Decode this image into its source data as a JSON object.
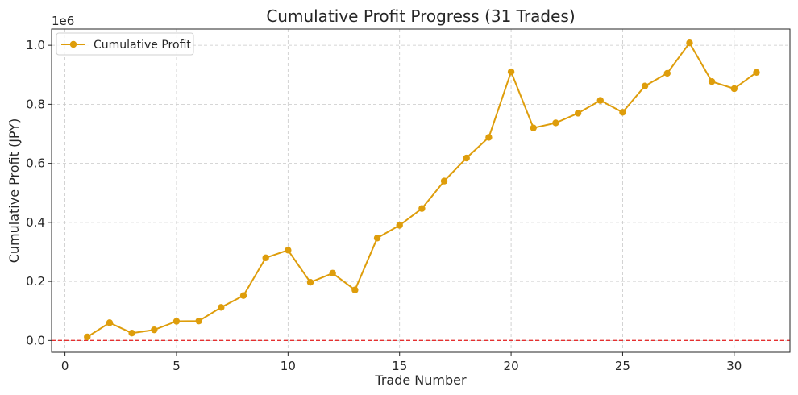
{
  "chart_data": {
    "type": "line",
    "title": "Cumulative Profit Progress (31 Trades)",
    "xlabel": "Trade Number",
    "ylabel": "Cumulative Profit (JPY)",
    "y_offset_label": "1e6",
    "xlim": [
      -0.6,
      32.5
    ],
    "ylim": [
      -0.04,
      1.055
    ],
    "x_ticks": [
      0,
      5,
      10,
      15,
      20,
      25,
      30
    ],
    "x_tick_labels": [
      "0",
      "5",
      "10",
      "15",
      "20",
      "25",
      "30"
    ],
    "y_ticks": [
      0.0,
      0.2,
      0.4,
      0.6,
      0.8,
      1.0
    ],
    "y_tick_labels": [
      "0.0",
      "0.2",
      "0.4",
      "0.6",
      "0.8",
      "1.0"
    ],
    "grid": true,
    "legend": {
      "position": "top-left",
      "entries": [
        "Cumulative Profit"
      ]
    },
    "series": [
      {
        "name": "Cumulative Profit",
        "color": "#de9d0b",
        "x": [
          1,
          2,
          3,
          4,
          5,
          6,
          7,
          8,
          9,
          10,
          11,
          12,
          13,
          14,
          15,
          16,
          17,
          18,
          19,
          20,
          21,
          22,
          23,
          24,
          25,
          26,
          27,
          28,
          29,
          30,
          31
        ],
        "values": [
          0.012,
          0.06,
          0.025,
          0.036,
          0.065,
          0.066,
          0.112,
          0.152,
          0.28,
          0.306,
          0.197,
          0.228,
          0.171,
          0.347,
          0.39,
          0.447,
          0.54,
          0.618,
          0.688,
          0.91,
          0.72,
          0.737,
          0.77,
          0.813,
          0.773,
          0.862,
          0.905,
          1.008,
          0.877,
          0.853,
          0.908
        ]
      }
    ],
    "reference_line": {
      "y": 0.0,
      "color": "#e53030",
      "style": "dashed"
    }
  }
}
